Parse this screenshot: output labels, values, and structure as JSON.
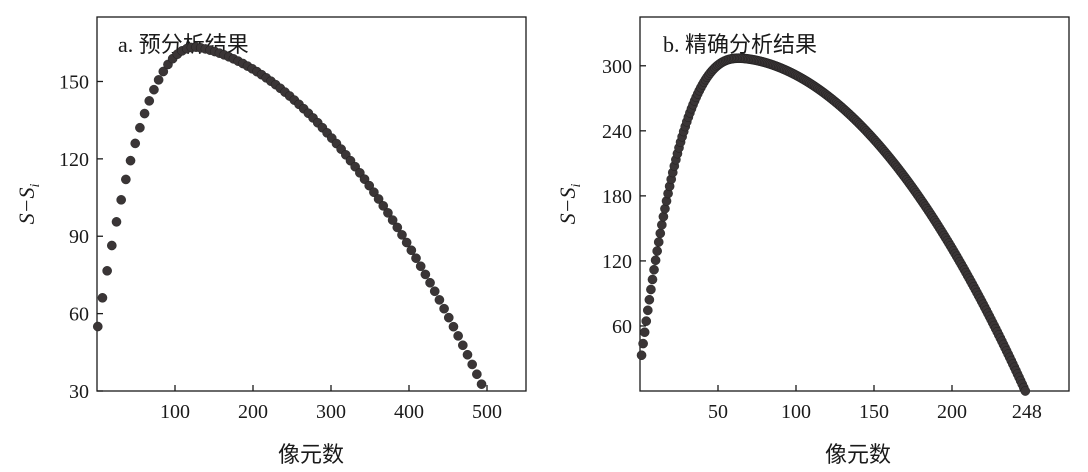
{
  "chart_data": [
    {
      "type": "scatter",
      "title": "a. 预分析结果",
      "xlabel": "像元数",
      "ylabel": "S−S",
      "ylabel_subscript": "i",
      "xlim": [
        0,
        550
      ],
      "ylim": [
        30,
        175
      ],
      "xticks": [
        100,
        200,
        300,
        400,
        500
      ],
      "yticks": [
        30,
        60,
        90,
        120,
        150
      ],
      "grid": false,
      "marker_color": "#3a3536",
      "x_start": 1,
      "x_end": 494,
      "x_step": 6,
      "x_peak": 127,
      "y_start": 55,
      "y_peak": 163.3,
      "y_end": 32,
      "rise_shape": 0.45,
      "fall_shape": 1.15,
      "fall_concavity": 0.22
    },
    {
      "type": "scatter",
      "title": "b. 精确分析结果",
      "xlabel": "像元数",
      "ylabel": "S−S",
      "ylabel_subscript": "i",
      "xlim": [
        0,
        275
      ],
      "ylim": [
        0,
        345
      ],
      "xticks": [
        50,
        100,
        150,
        200,
        248
      ],
      "yticks": [
        60,
        120,
        180,
        240,
        300
      ],
      "grid": false,
      "marker_color": "#3a3536",
      "x_start": 1,
      "x_end": 247,
      "x_step": 1,
      "x_peak": 64,
      "y_start": 33,
      "y_peak": 307,
      "y_end": 0,
      "rise_shape": 0.4,
      "fall_shape": 1.3,
      "fall_concavity": 0.15
    }
  ]
}
